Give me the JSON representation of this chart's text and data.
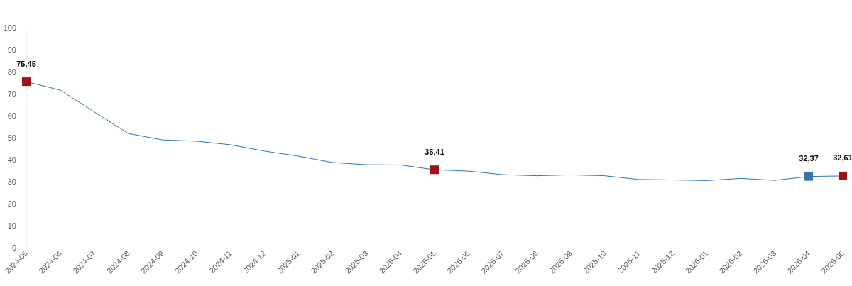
{
  "chart_data": {
    "type": "line",
    "categories": [
      "2024-05",
      "2024-06",
      "2024-07",
      "2024-08",
      "2024-09",
      "2024-10",
      "2024-11",
      "2024-12",
      "2025-01",
      "2025-02",
      "2025-03",
      "2025-04",
      "2025-05",
      "2025-06",
      "2025-07",
      "2025-08",
      "2025-09",
      "2025-10",
      "2025-11",
      "2025-12",
      "2026-01",
      "2026-02",
      "2026-03",
      "2026-04",
      "2026-05"
    ],
    "series": [
      {
        "color": "#2e75b6",
        "values": [
          75.45,
          71.6,
          61.7,
          51.9,
          49.0,
          48.4,
          46.8,
          43.9,
          41.6,
          38.7,
          37.7,
          37.6,
          35.41,
          34.8,
          33.2,
          32.7,
          33.1,
          32.7,
          31.0,
          30.8,
          30.5,
          31.5,
          30.6,
          32.37,
          32.61
        ]
      },
      {
        "type": "scatter",
        "marker": "square",
        "values": [
          75.45,
          null,
          null,
          null,
          null,
          null,
          null,
          null,
          null,
          null,
          null,
          null,
          35.41,
          null,
          null,
          null,
          null,
          null,
          null,
          null,
          null,
          null,
          null,
          32.37,
          32.61
        ],
        "colors": [
          "#a50f15",
          null,
          null,
          null,
          null,
          null,
          null,
          null,
          null,
          null,
          null,
          null,
          "#a50f15",
          null,
          null,
          null,
          null,
          null,
          null,
          null,
          null,
          null,
          null,
          "#2e75b6",
          "#a50f15"
        ],
        "value_labels": [
          "75,45",
          null,
          null,
          null,
          null,
          null,
          null,
          null,
          null,
          null,
          null,
          null,
          "35,41",
          null,
          null,
          null,
          null,
          null,
          null,
          null,
          null,
          null,
          null,
          "32,37",
          "32,61"
        ]
      }
    ],
    "ylim": [
      0,
      100
    ],
    "yticks": [
      0,
      10,
      20,
      30,
      40,
      50,
      60,
      70,
      80,
      90,
      100
    ],
    "grid": false,
    "line_style": "solid"
  }
}
